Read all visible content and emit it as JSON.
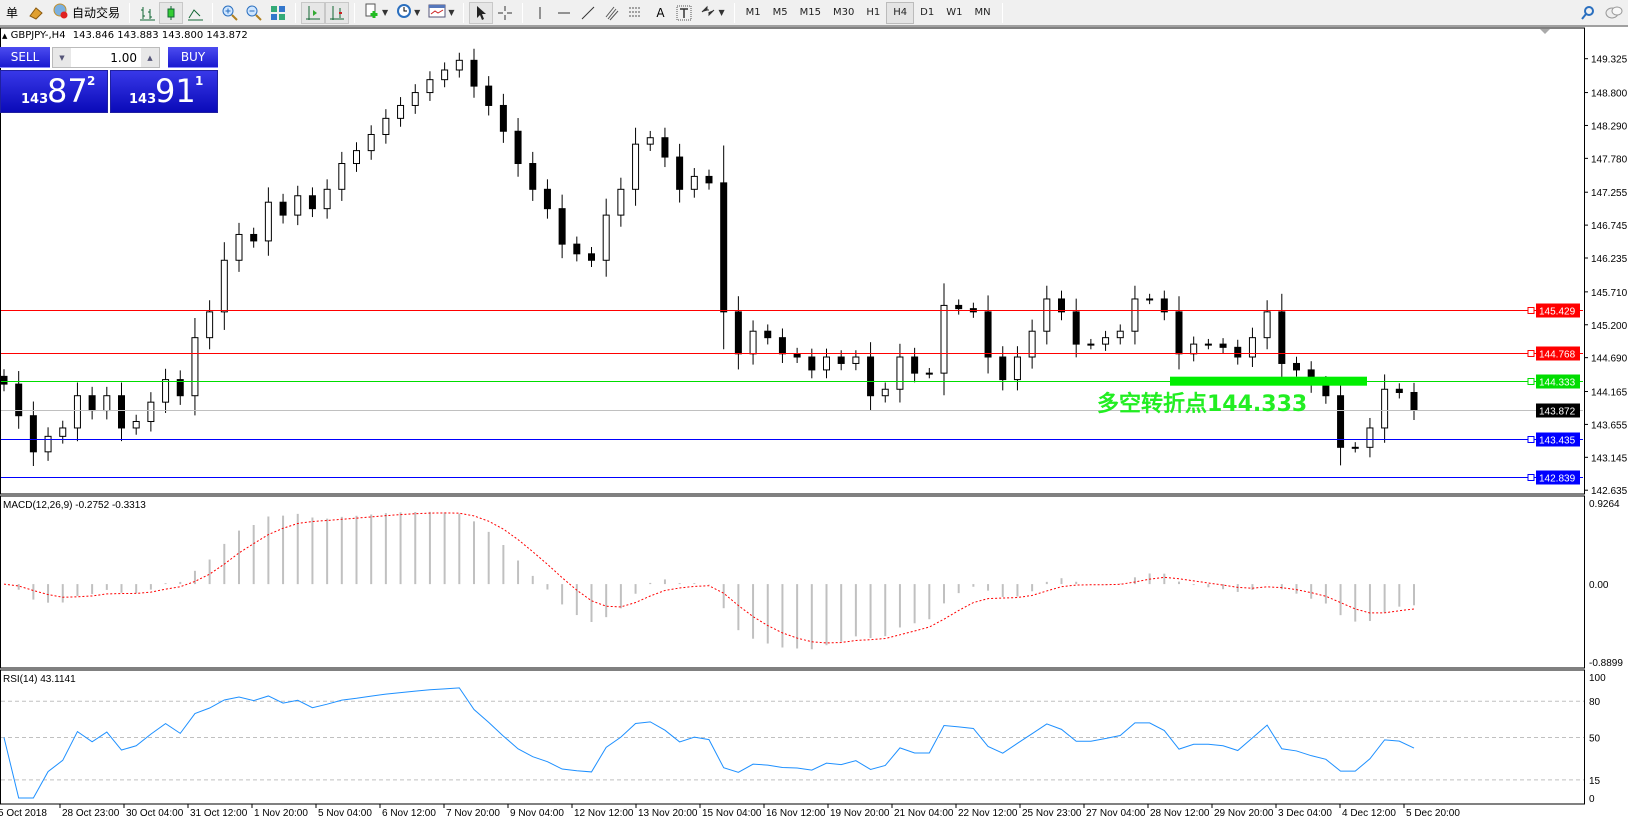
{
  "toolbar": {
    "new_order_label": "单",
    "auto_trading_label": "自动交易",
    "periods": [
      "M1",
      "M5",
      "M15",
      "M30",
      "H1",
      "H4",
      "D1",
      "W1",
      "MN"
    ],
    "active_period": "H4",
    "icons": [
      "gold-bars-icon",
      "auto-trading-icon",
      "bar-chart-icon",
      "candlestick-icon",
      "line-chart-icon",
      "zoom-in-icon",
      "zoom-out-icon",
      "tile-windows-icon",
      "auto-scroll-icon",
      "chart-shift-icon",
      "new-indicator-icon",
      "periods-clock-icon",
      "templates-icon",
      "cursor-icon",
      "crosshair-icon",
      "vertical-line-icon",
      "horizontal-line-icon",
      "trendline-icon",
      "fibo-channel-icon",
      "fibo-retracement-icon",
      "text-icon",
      "text-label-icon",
      "arrows-icon",
      "search-icon",
      "chat-icon"
    ]
  },
  "chart_header": {
    "symbol": "GBPJPY-,H4",
    "ohlc": "143.846 143.883 143.800 143.872"
  },
  "one_click": {
    "sell_label": "SELL",
    "buy_label": "BUY",
    "lot": "1.00",
    "sell_price": {
      "prefix": "143",
      "big": "87",
      "sup": "2"
    },
    "buy_price": {
      "prefix": "143",
      "big": "91",
      "sup": "1"
    }
  },
  "annotation": {
    "text": "多空转折点144.333",
    "color": "#22ee22"
  },
  "chart_data": [
    {
      "type": "candlestick",
      "symbol": "GBPJPY-",
      "timeframe": "H4",
      "ylim": [
        142.635,
        149.325
      ],
      "y_ticks": [
        "149.325",
        "148.800",
        "148.290",
        "147.780",
        "147.255",
        "146.745",
        "146.235",
        "145.710",
        "145.200",
        "144.690",
        "144.165",
        "143.655",
        "143.145",
        "142.635"
      ],
      "x_ticks": [
        "5 Oct 2018",
        "28 Oct 23:00",
        "30 Oct 04:00",
        "31 Oct 12:00",
        "1 Nov 20:00",
        "5 Nov 04:00",
        "6 Nov 12:00",
        "7 Nov 20:00",
        "9 Nov 04:00",
        "12 Nov 12:00",
        "13 Nov 20:00",
        "15 Nov 04:00",
        "16 Nov 12:00",
        "19 Nov 20:00",
        "21 Nov 04:00",
        "22 Nov 12:00",
        "25 Nov 23:00",
        "27 Nov 04:00",
        "28 Nov 12:00",
        "29 Nov 20:00",
        "3 Dec 04:00",
        "4 Dec 12:00",
        "5 Dec 20:00"
      ],
      "first_open": 144.4,
      "close": [
        144.28,
        143.79,
        143.23,
        143.47,
        143.6,
        144.1,
        143.87,
        144.1,
        143.6,
        143.7,
        144.0,
        144.35,
        144.1,
        145.0,
        145.4,
        146.2,
        146.6,
        146.5,
        147.1,
        146.9,
        147.2,
        147.0,
        147.3,
        147.7,
        147.9,
        148.15,
        148.4,
        148.6,
        148.8,
        149.0,
        149.15,
        149.3,
        148.9,
        148.6,
        148.2,
        147.7,
        147.3,
        147.0,
        146.45,
        146.3,
        146.2,
        146.9,
        147.3,
        148.0,
        148.1,
        147.8,
        147.3,
        147.5,
        147.4,
        145.4,
        144.75,
        145.1,
        145.0,
        144.75,
        144.7,
        144.5,
        144.7,
        144.6,
        144.7,
        144.1,
        144.2,
        144.7,
        144.45,
        144.45,
        145.5,
        145.45,
        145.4,
        144.7,
        144.35,
        144.7,
        145.1,
        145.6,
        145.4,
        144.9,
        144.9,
        145.0,
        145.1,
        145.6,
        145.6,
        145.4,
        144.75,
        144.9,
        144.9,
        144.85,
        144.7,
        145.0,
        145.4,
        144.6,
        144.5,
        144.28,
        144.1,
        143.3,
        143.3,
        143.6,
        144.2,
        144.15,
        143.872
      ],
      "horizontal_lines": [
        {
          "price": 145.429,
          "label": "145.429",
          "color": "#ff0000"
        },
        {
          "price": 144.768,
          "label": "144.768",
          "color": "#ff0000"
        },
        {
          "price": 144.333,
          "label": "144.333",
          "color": "#00dd00"
        },
        {
          "price": 143.872,
          "label": "143.872",
          "color": "#000000",
          "line_color": "#c0c0c0"
        },
        {
          "price": 143.435,
          "label": "143.435",
          "color": "#0000ff"
        },
        {
          "price": 142.839,
          "label": "142.839",
          "color": "#0000ff"
        }
      ],
      "pivot_bar_price": 144.333
    },
    {
      "type": "bar",
      "indicator": "MACD(12,26,9)",
      "values_label": "-0.2752 -0.3313",
      "ylim": [
        -0.8899,
        0.9264
      ],
      "y_ticks": [
        "0.9264",
        "0.00",
        "-0.8899"
      ],
      "histogram_color": "#c0c0c0",
      "signal_color": "#ff0000"
    },
    {
      "type": "line",
      "indicator": "RSI(14)",
      "values_label": "43.1141",
      "ylim": [
        0,
        100
      ],
      "y_ticks": [
        "100",
        "80",
        "50",
        "15",
        "0"
      ],
      "levels": [
        80,
        50,
        15
      ],
      "line_color": "#1e90ff"
    }
  ]
}
